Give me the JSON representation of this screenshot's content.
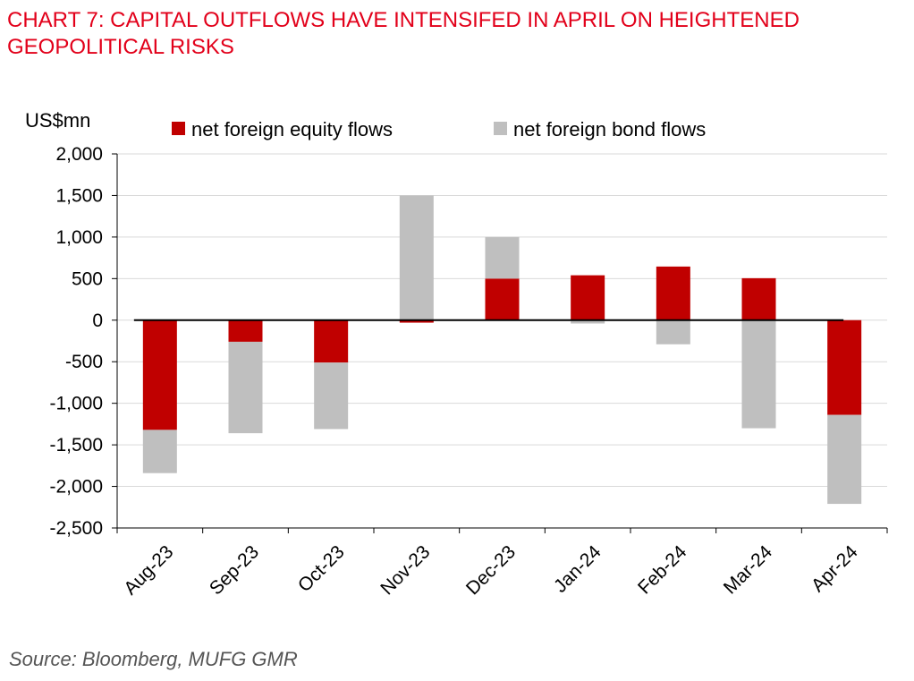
{
  "chart_data": {
    "type": "bar",
    "stacked": true,
    "title": "CHART 7: CAPITAL OUTFLOWS HAVE INTENSIFED IN APRIL ON HEIGHTENED GEOPOLITICAL RISKS",
    "ylabel": "US$mn",
    "xlabel": "",
    "ylim": [
      -2500,
      2000
    ],
    "yticks": [
      2000,
      1500,
      1000,
      500,
      0,
      -500,
      -1000,
      -1500,
      -2000,
      -2500
    ],
    "ytick_labels": [
      "2,000",
      "1,500",
      "1,000",
      "500",
      "0",
      "-500",
      "-1,000",
      "-1,500",
      "-2,000",
      "-2,500"
    ],
    "grid": true,
    "legend_position": "top",
    "categories": [
      "Aug-23",
      "Sep-23",
      "Oct-23",
      "Nov-23",
      "Dec-23",
      "Jan-24",
      "Feb-24",
      "Mar-24",
      "Apr-24"
    ],
    "series": [
      {
        "name": "net foreign equity flows",
        "color": "#c00000",
        "values": [
          -1320,
          -260,
          -510,
          -30,
          500,
          540,
          645,
          505,
          -1140
        ]
      },
      {
        "name": "net foreign bond flows",
        "color": "#bfbfbf",
        "values": [
          -520,
          -1100,
          -800,
          1500,
          500,
          -40,
          -290,
          -1300,
          -1070
        ]
      }
    ],
    "source": "Source: Bloomberg, MUFG GMR"
  }
}
